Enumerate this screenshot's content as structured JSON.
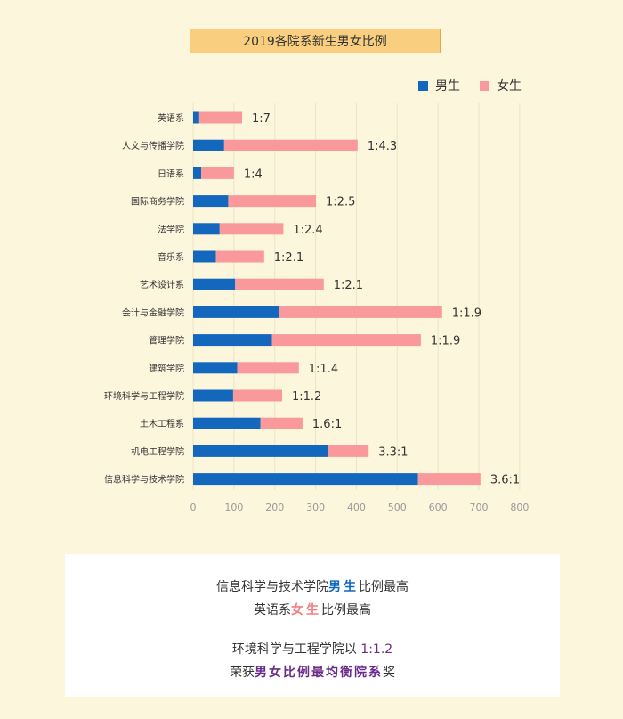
{
  "chart_data": {
    "type": "bar",
    "orientation": "horizontal",
    "stacked": true,
    "title": "2019各院系新生男女比例",
    "categories": [
      "英语系",
      "人文与传播学院",
      "日语系",
      "国际商务学院",
      "法学院",
      "音乐系",
      "艺术设计系",
      "会计与金融学院",
      "管理学院",
      "建筑学院",
      "环境科学与工程学院",
      "土木工程系",
      "机电工程学院",
      "信息科学与技术学院"
    ],
    "series": [
      {
        "name": "男生",
        "color": "#1368be",
        "values": [
          15,
          76,
          20,
          86,
          65,
          56,
          103,
          210,
          193,
          108,
          98,
          165,
          330,
          551
        ]
      },
      {
        "name": "女生",
        "color": "#f9999c",
        "values": [
          105,
          327,
          80,
          215,
          156,
          118,
          217,
          400,
          365,
          151,
          120,
          103,
          100,
          153
        ]
      }
    ],
    "ratio_labels": [
      "1:7",
      "1:4.3",
      "1:4",
      "1:2.5",
      "1:2.4",
      "1:2.1",
      "1:2.1",
      "1:1.9",
      "1:1.9",
      "1:1.4",
      "1:1.2",
      "1.6:1",
      "3.3:1",
      "3.6:1"
    ],
    "xlim": [
      0,
      800
    ],
    "xticks": [
      0,
      100,
      200,
      300,
      400,
      500,
      600,
      700,
      800
    ],
    "grid": true,
    "legend": "top-right"
  },
  "notes": {
    "line1_pre": "信息科学与技术学院",
    "line1_hl": "男生",
    "line1_post": "比例最高",
    "line2_pre": "英语系",
    "line2_hl": "女生",
    "line2_post": "比例最高",
    "line3_pre": "环境科学与工程学院以 ",
    "line3_hl": "1:1.2",
    "line4_pre": "荣获",
    "line4_hl": "男女比例最均衡院系",
    "line4_post": "奖"
  }
}
